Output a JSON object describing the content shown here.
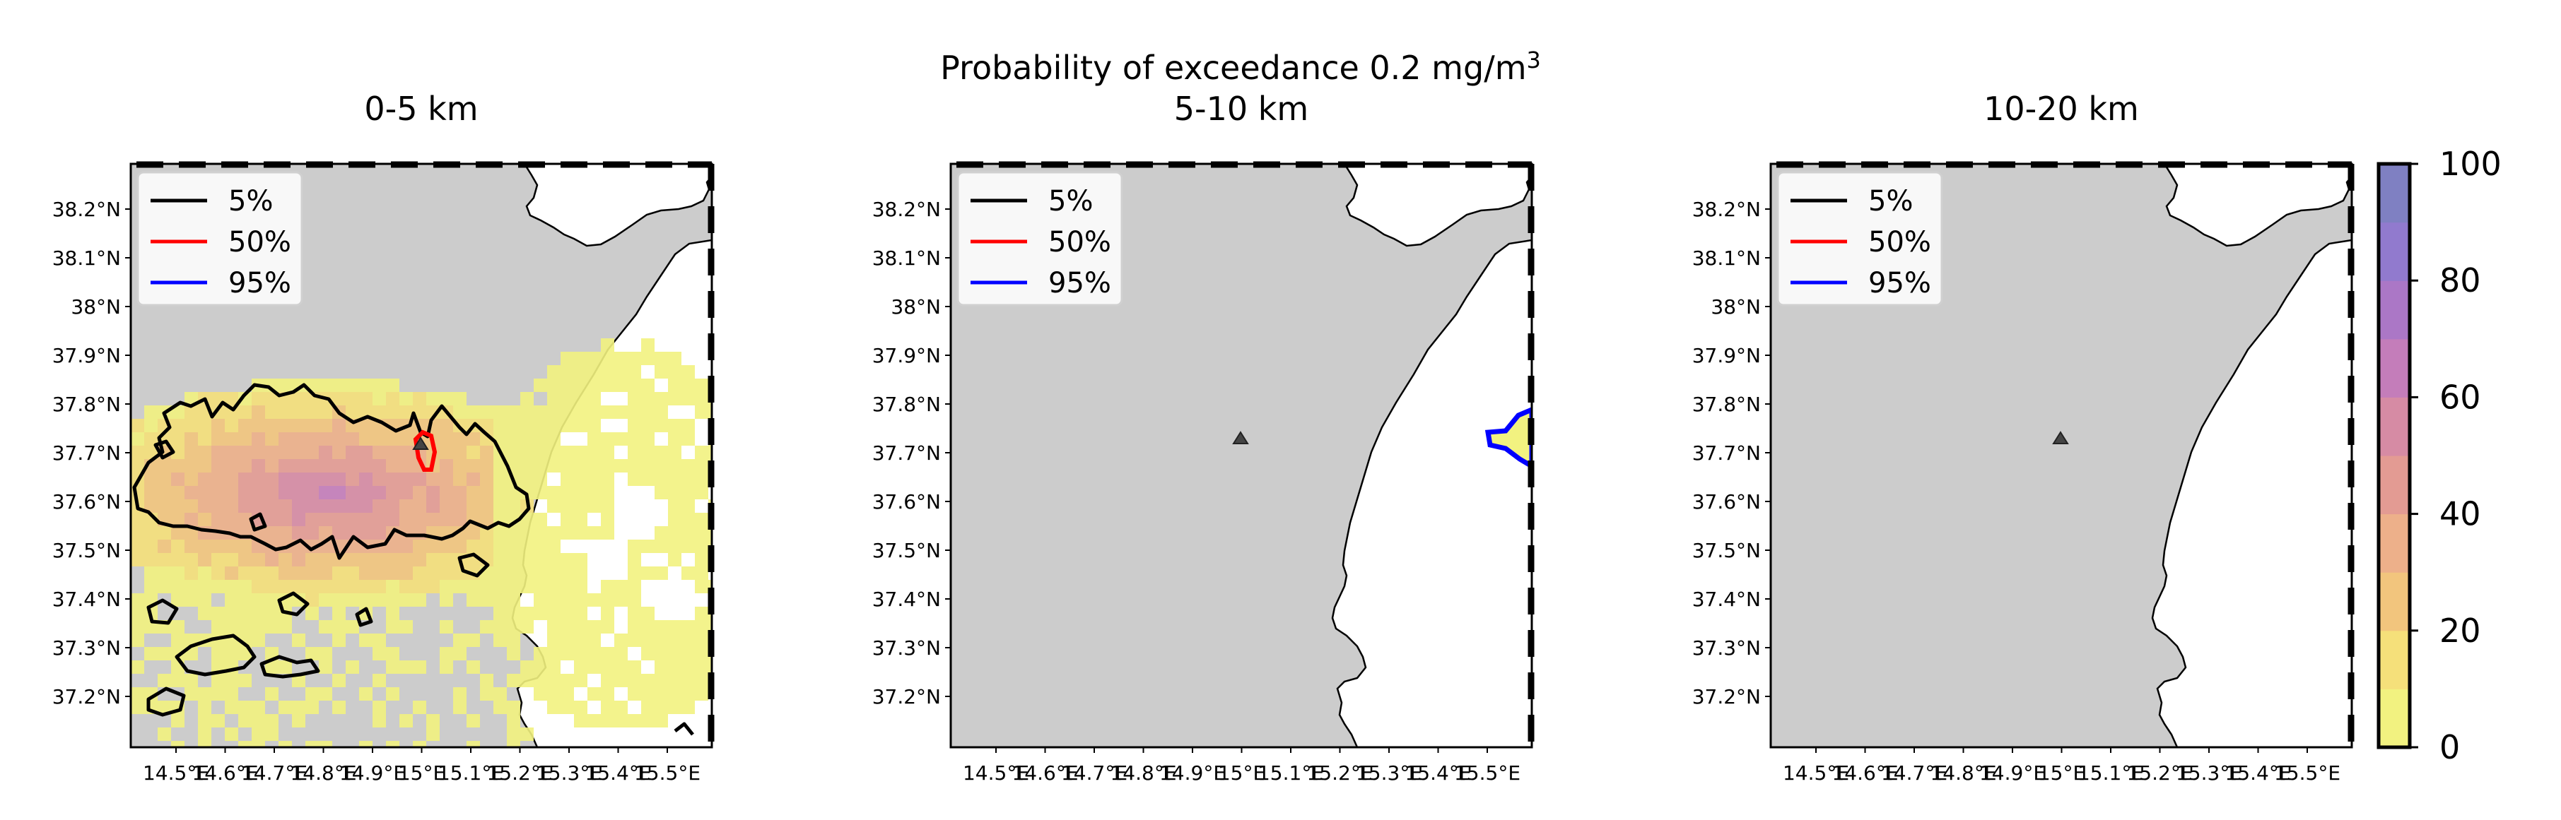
{
  "figure": {
    "title_line1": "Probability of exceedance 0.2 mg/m",
    "title_superscript": "3"
  },
  "panels": [
    {
      "title": "0-5 km",
      "has_data": true,
      "has_vent": false
    },
    {
      "title": "5-10 km",
      "has_data": false,
      "has_vent": true
    },
    {
      "title": "10-20 km",
      "has_data": false,
      "has_vent": true
    }
  ],
  "axes": {
    "lat_labels": [
      "38.2°N",
      "38.1°N",
      "38°N",
      "37.9°N",
      "37.8°N",
      "37.7°N",
      "37.6°N",
      "37.5°N",
      "37.4°N",
      "37.3°N",
      "37.2°N"
    ],
    "lon_labels": [
      "14.5°E",
      "14.6°E",
      "14.7°E",
      "14.8°E",
      "14.9°E",
      "15°E",
      "15.1°E",
      "15.2°E",
      "15.3°E",
      "15.4°E",
      "15.5°E"
    ]
  },
  "legend": [
    {
      "label": "5%",
      "color": "#000000"
    },
    {
      "label": "50%",
      "color": "#ff0000"
    },
    {
      "label": "95%",
      "color": "#0000ff"
    }
  ],
  "colorbar": {
    "ticks": [
      "0",
      "20",
      "40",
      "60",
      "80",
      "100"
    ],
    "colors": [
      "#f2f280",
      "#f5e07a",
      "#f2c57d",
      "#edb08a",
      "#e39b93",
      "#d68ba4",
      "#c47dba",
      "#ab77c6",
      "#917ace",
      "#7f80c2"
    ]
  },
  "map_colors": {
    "land": "#cccccc",
    "sea": "#ffffff"
  }
}
